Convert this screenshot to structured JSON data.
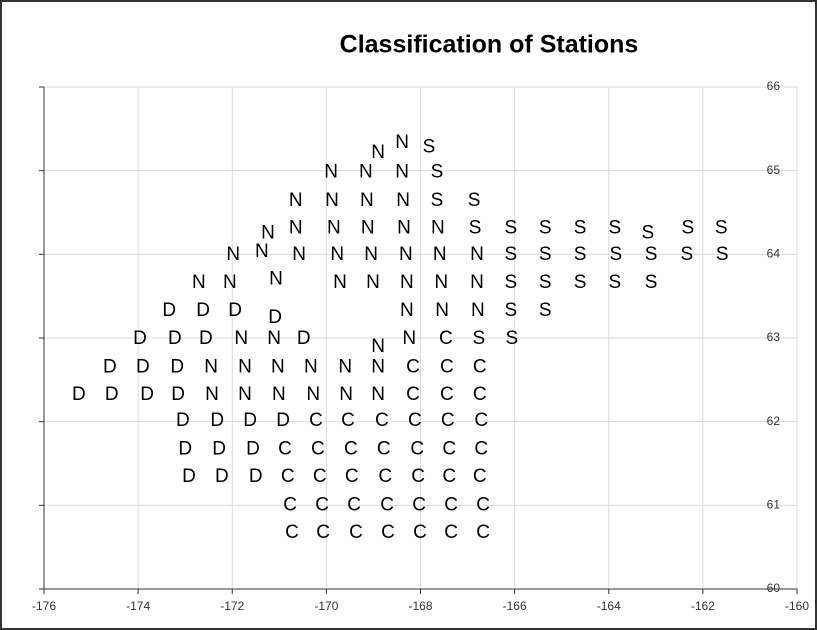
{
  "chart_data": {
    "type": "scatter",
    "title": "Classification of Stations",
    "xlim": [
      -176,
      -160
    ],
    "xticks": [
      -176,
      -174,
      -172,
      -170,
      -168,
      -166,
      -164,
      -162,
      -160
    ],
    "ylim": [
      60,
      66
    ],
    "yticks": [
      60,
      61,
      62,
      63,
      64,
      65,
      66
    ],
    "grid": true,
    "series": [
      {
        "name": "D",
        "color": "#000000",
        "x": [
          -175.26,
          -174.56,
          -173.81,
          -173.15,
          -174.6,
          -173.9,
          -173.17,
          -173.96,
          -173.22,
          -172.56,
          -170.48,
          -173.34,
          -172.62,
          -171.94,
          -171.09,
          -173.05,
          -172.32,
          -171.62,
          -170.92,
          -173.0,
          -172.28,
          -171.56,
          -172.92,
          -172.22,
          -171.5
        ],
        "y": [
          62.32,
          62.32,
          62.32,
          62.32,
          62.65,
          62.65,
          62.65,
          62.99,
          62.99,
          62.99,
          62.99,
          63.32,
          63.32,
          63.32,
          63.24,
          62.01,
          62.01,
          62.01,
          62.01,
          61.67,
          61.67,
          61.67,
          61.34,
          61.34,
          61.34
        ]
      },
      {
        "name": "N",
        "color": "#000000",
        "x": [
          -172.43,
          -171.73,
          -171.01,
          -170.28,
          -169.58,
          -168.9,
          -172.45,
          -171.73,
          -171.03,
          -170.33,
          -169.6,
          -168.9,
          -168.9,
          -171.81,
          -171.11,
          -168.24,
          -168.29,
          -167.54,
          -166.78,
          -172.71,
          -172.05,
          -171.07,
          -169.71,
          -169.01,
          -168.29,
          -167.56,
          -166.8,
          -171.98,
          -171.37,
          -170.58,
          -169.77,
          -169.05,
          -168.31,
          -167.59,
          -166.8,
          -171.24,
          -170.65,
          -169.84,
          -169.12,
          -168.35,
          -167.63,
          -170.65,
          -169.88,
          -169.14,
          -168.37,
          -169.9,
          -169.16,
          -168.39,
          -168.9,
          -168.39
        ],
        "y": [
          62.32,
          62.32,
          62.32,
          62.32,
          62.32,
          62.32,
          62.65,
          62.65,
          62.65,
          62.65,
          62.65,
          62.65,
          62.89,
          62.99,
          62.99,
          62.99,
          63.32,
          63.32,
          63.32,
          63.66,
          63.66,
          63.7,
          63.66,
          63.66,
          63.66,
          63.66,
          63.66,
          63.99,
          64.03,
          63.99,
          63.99,
          63.99,
          63.99,
          63.99,
          63.99,
          64.25,
          64.31,
          64.31,
          64.31,
          64.31,
          64.31,
          64.64,
          64.64,
          64.64,
          64.64,
          64.98,
          64.98,
          64.98,
          65.21,
          65.33
        ]
      },
      {
        "name": "S",
        "color": "#000000",
        "x": [
          -166.76,
          -166.06,
          -166.08,
          -165.35,
          -166.08,
          -165.35,
          -164.61,
          -163.87,
          -163.1,
          -166.08,
          -165.35,
          -164.61,
          -163.85,
          -163.1,
          -162.34,
          -161.59,
          -166.84,
          -166.08,
          -165.35,
          -164.61,
          -163.87,
          -163.17,
          -162.32,
          -161.61,
          -167.65,
          -166.86,
          -167.65,
          -167.82
        ],
        "y": [
          62.99,
          62.99,
          63.32,
          63.32,
          63.66,
          63.66,
          63.66,
          63.66,
          63.66,
          63.99,
          63.99,
          63.99,
          63.99,
          63.99,
          63.99,
          63.99,
          64.31,
          64.31,
          64.31,
          64.31,
          64.31,
          64.25,
          64.31,
          64.31,
          64.64,
          64.64,
          64.98,
          65.28
        ]
      },
      {
        "name": "C",
        "color": "#000000",
        "x": [
          -168.16,
          -167.44,
          -166.74,
          -168.16,
          -167.44,
          -166.74,
          -167.46,
          -170.22,
          -169.54,
          -168.82,
          -168.12,
          -167.42,
          -166.71,
          -170.88,
          -170.18,
          -169.48,
          -168.78,
          -168.07,
          -167.39,
          -166.71,
          -170.82,
          -170.14,
          -169.46,
          -168.75,
          -168.05,
          -167.39,
          -166.74,
          -170.77,
          -170.09,
          -169.41,
          -168.71,
          -168.03,
          -167.35,
          -166.67,
          -170.73,
          -170.07,
          -169.37,
          -168.69,
          -168.01,
          -167.35,
          -166.67
        ],
        "y": [
          62.32,
          62.32,
          62.32,
          62.65,
          62.65,
          62.65,
          62.99,
          62.01,
          62.01,
          62.01,
          62.01,
          62.01,
          62.01,
          61.67,
          61.67,
          61.67,
          61.67,
          61.67,
          61.67,
          61.67,
          61.34,
          61.34,
          61.34,
          61.34,
          61.34,
          61.34,
          61.34,
          61.0,
          61.0,
          61.0,
          61.0,
          61.0,
          61.0,
          61.0,
          60.67,
          60.67,
          60.67,
          60.67,
          60.67,
          60.67,
          60.67
        ]
      }
    ]
  }
}
